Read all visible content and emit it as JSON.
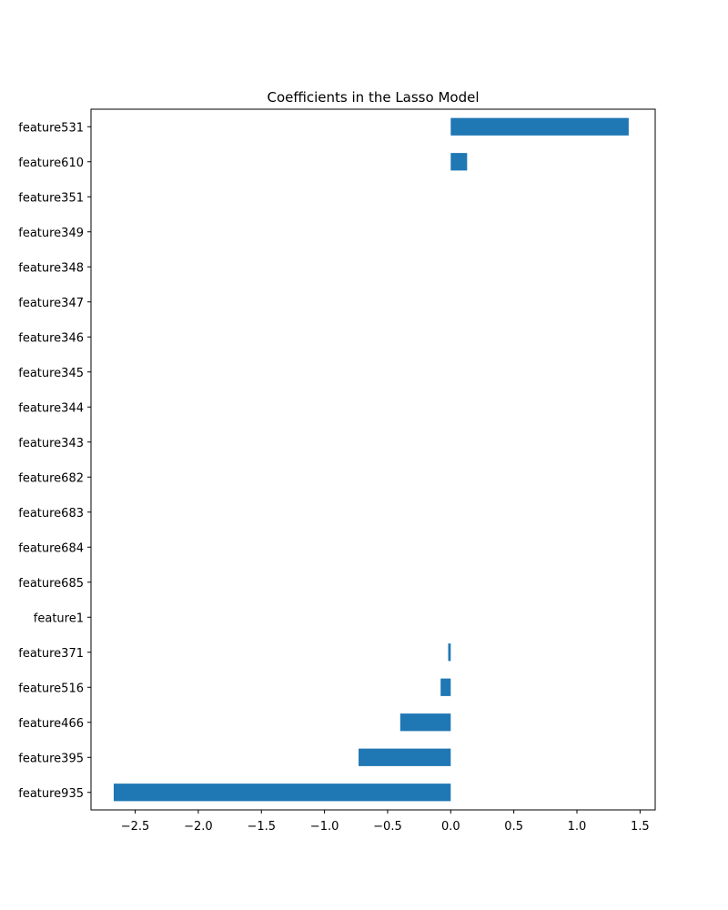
{
  "chart_data": {
    "type": "bar",
    "orientation": "horizontal",
    "title": "Coefficients in the Lasso Model",
    "xlabel": "",
    "ylabel": "",
    "categories": [
      "feature531",
      "feature610",
      "feature351",
      "feature349",
      "feature348",
      "feature347",
      "feature346",
      "feature345",
      "feature344",
      "feature343",
      "feature682",
      "feature683",
      "feature684",
      "feature685",
      "feature1",
      "feature371",
      "feature516",
      "feature466",
      "feature395",
      "feature935"
    ],
    "values": [
      1.41,
      0.13,
      0,
      0,
      0,
      0,
      0,
      0,
      0,
      0,
      0,
      0,
      0,
      0,
      0,
      -0.02,
      -0.08,
      -0.4,
      -0.73,
      -2.67
    ],
    "xlim": [
      -2.85,
      1.62
    ],
    "xticks": [
      -2.5,
      -2.0,
      -1.5,
      -1.0,
      -0.5,
      0.0,
      0.5,
      1.0,
      1.5
    ],
    "xtick_labels": [
      "−2.5",
      "−2.0",
      "−1.5",
      "−1.0",
      "−0.5",
      "0.0",
      "0.5",
      "1.0",
      "1.5"
    ],
    "bar_color": "#1f77b4",
    "grid": false,
    "legend": "none"
  }
}
